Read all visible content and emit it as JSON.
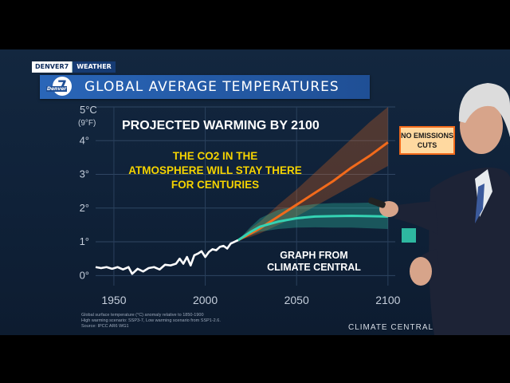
{
  "station": {
    "brand": "DENVER7",
    "section": "WEATHER",
    "logo_label": "7",
    "logo_word": "Denver"
  },
  "header": {
    "title": "GLOBAL AVERAGE TEMPERATURES"
  },
  "chart_data": {
    "type": "line",
    "title": "PROJECTED WARMING BY 2100",
    "annotation": "THE CO2 IN THE ATMOSPHERE WILL STAY THERE FOR CENTURIES",
    "annotation_lines": [
      "THE CO2 IN THE",
      "ATMOSPHERE WILL STAY THERE",
      "FOR CENTURIES"
    ],
    "source_note_lines": [
      "GRAPH FROM",
      "CLIMATE CENTRAL"
    ],
    "y_unit_top": "5°C",
    "y_unit_alt": "(9°F)",
    "y_ticks": [
      {
        "value": 0,
        "label": "0°"
      },
      {
        "value": 1,
        "label": "1°"
      },
      {
        "value": 2,
        "label": "2°"
      },
      {
        "value": 3,
        "label": "3°"
      },
      {
        "value": 4,
        "label": "4°"
      }
    ],
    "x_ticks": [
      {
        "value": 1950,
        "label": "1950"
      },
      {
        "value": 2000,
        "label": "2000"
      },
      {
        "value": 2050,
        "label": "2050"
      },
      {
        "value": 2100,
        "label": "2100"
      }
    ],
    "xlim": [
      1940,
      2104
    ],
    "ylim": [
      -0.3,
      5
    ],
    "grid": true,
    "series": [
      {
        "key": "observed",
        "color": "#ffffff",
        "x": [
          1940,
          1943,
          1946,
          1949,
          1952,
          1955,
          1958,
          1960,
          1963,
          1966,
          1969,
          1972,
          1975,
          1978,
          1981,
          1984,
          1986,
          1988,
          1990,
          1992,
          1994,
          1996,
          1998,
          2000,
          2002,
          2004,
          2006,
          2008,
          2010,
          2012,
          2014,
          2016,
          2018
        ],
        "y": [
          0.25,
          0.22,
          0.25,
          0.2,
          0.25,
          0.18,
          0.25,
          0.05,
          0.2,
          0.12,
          0.22,
          0.25,
          0.18,
          0.32,
          0.3,
          0.35,
          0.5,
          0.35,
          0.55,
          0.3,
          0.6,
          0.65,
          0.72,
          0.55,
          0.7,
          0.78,
          0.75,
          0.85,
          0.88,
          0.8,
          0.95,
          1.0,
          1.05
        ]
      },
      {
        "key": "high",
        "name": "NO EMISSIONS CUTS",
        "label_lines": [
          "NO EMISSIONS",
          "CUTS"
        ],
        "color": "#f26a1b",
        "x": [
          2018,
          2025,
          2030,
          2040,
          2050,
          2060,
          2070,
          2080,
          2090,
          2100
        ],
        "y": [
          1.05,
          1.25,
          1.4,
          1.75,
          2.1,
          2.45,
          2.8,
          3.2,
          3.55,
          3.95
        ],
        "band_lower": [
          1.05,
          1.15,
          1.25,
          1.5,
          1.75,
          2.05,
          2.35,
          2.65,
          2.95,
          3.25
        ],
        "band_upper": [
          1.05,
          1.4,
          1.6,
          2.1,
          2.55,
          3.05,
          3.55,
          4.05,
          4.55,
          5.0
        ]
      },
      {
        "key": "low",
        "name": "",
        "color": "#34d3b3",
        "x": [
          2018,
          2025,
          2030,
          2040,
          2050,
          2060,
          2070,
          2080,
          2090,
          2100
        ],
        "y": [
          1.05,
          1.3,
          1.45,
          1.6,
          1.7,
          1.75,
          1.76,
          1.77,
          1.76,
          1.75
        ],
        "band_lower": [
          1.05,
          1.2,
          1.3,
          1.38,
          1.42,
          1.43,
          1.42,
          1.42,
          1.4,
          1.38
        ],
        "band_upper": [
          1.05,
          1.45,
          1.7,
          1.95,
          2.05,
          2.12,
          2.15,
          2.15,
          2.16,
          2.15
        ]
      }
    ],
    "footnote_lines": [
      "Global surface temperature (°C) anomaly relative to 1850-1900",
      "High warming scenario: SSP3-7, Low warming scenario from SSP1-2.6.",
      "Source: IPCC AR6 WG1"
    ],
    "credit": "CLIMATE CENTRAL"
  },
  "colors": {
    "title_bar": "#2a66b8",
    "background": "#13273f",
    "tag_box": "#ffd9a0"
  }
}
